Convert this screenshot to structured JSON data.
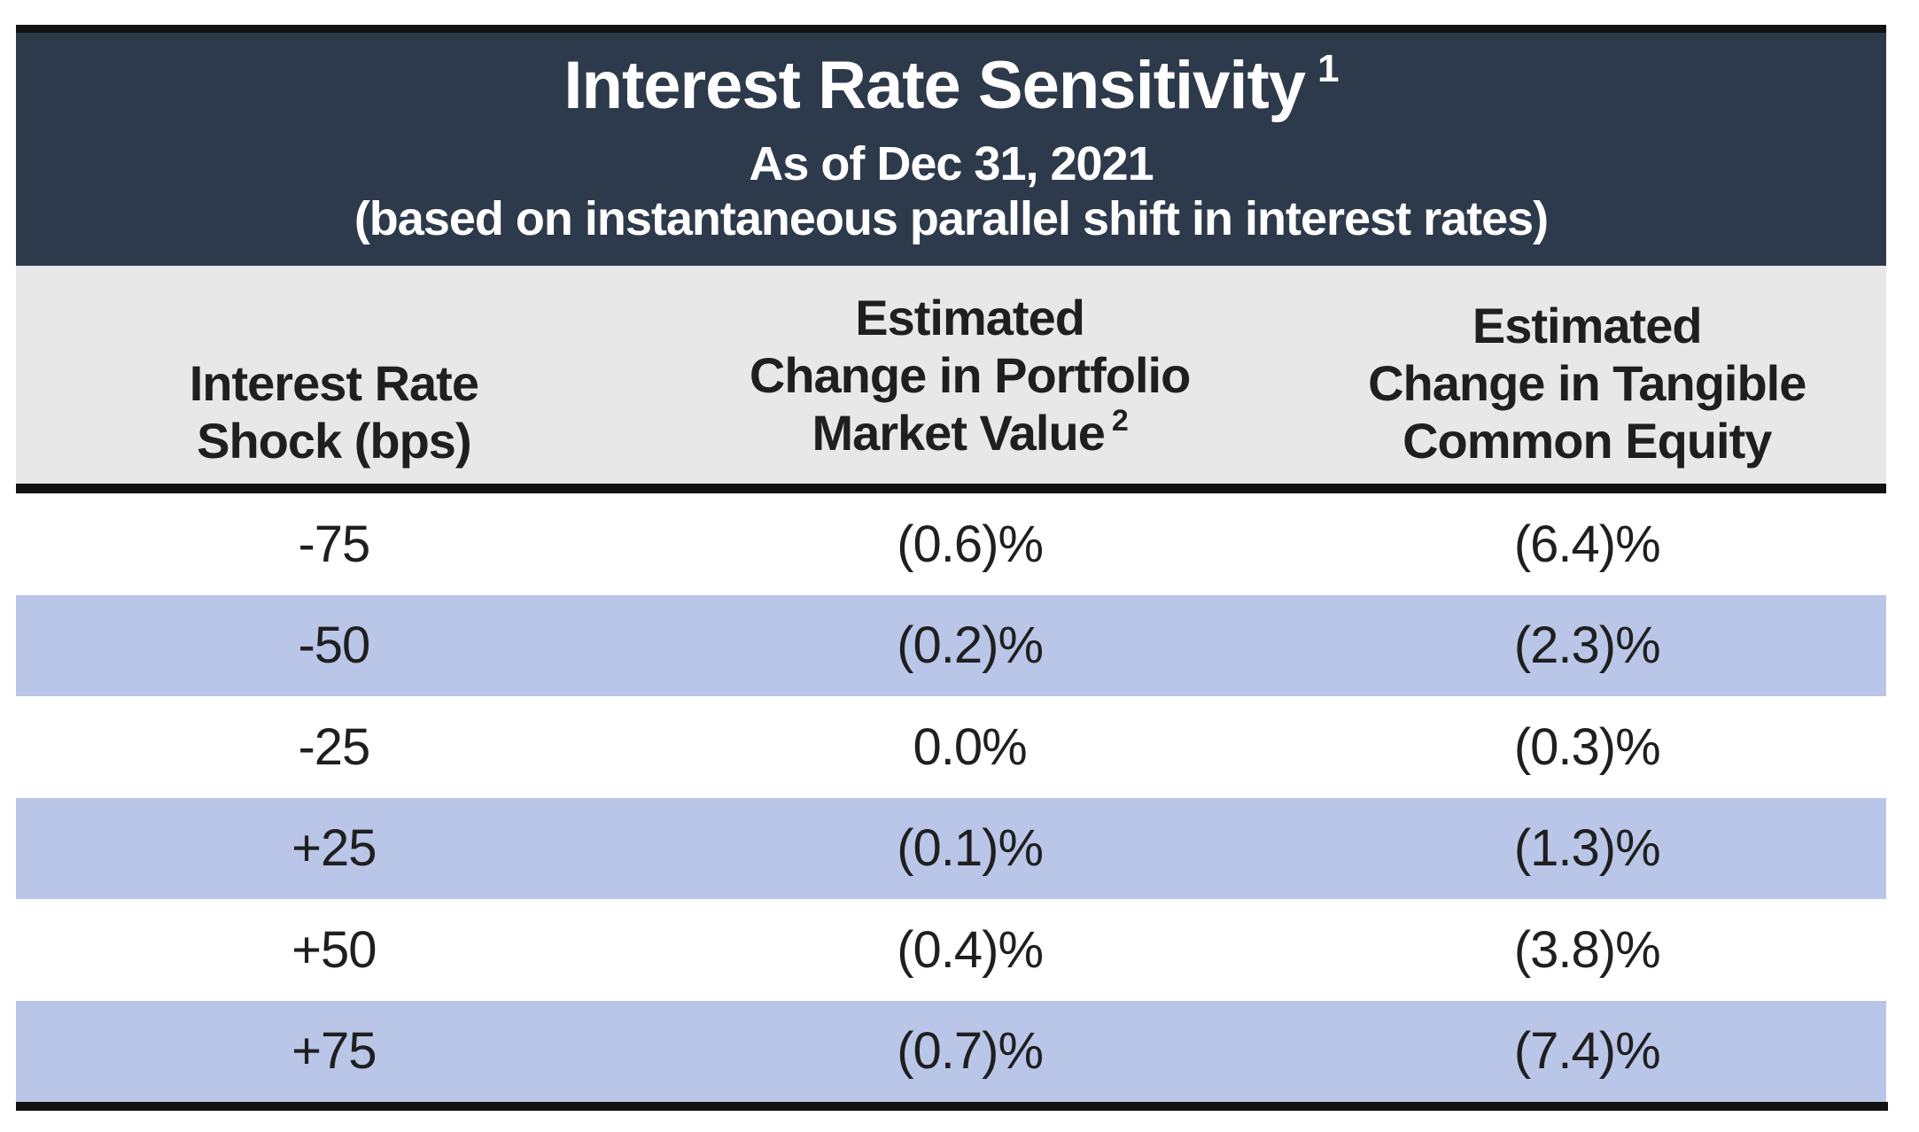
{
  "colors": {
    "header_band_bg": "#2d3a4b",
    "column_header_bg": "#e8e8e8",
    "alt_row_bg": "#b9c6e8",
    "rule_black": "#121212",
    "text_ink": "#1f1f1f",
    "title_text": "#ffffff"
  },
  "table": {
    "title": "Interest Rate Sensitivity",
    "title_footnote": "1",
    "subtitle": "As of Dec 31, 2021",
    "note": "(based on instantaneous parallel shift in interest rates)",
    "columns": [
      {
        "label": "Interest Rate\nShock (bps)"
      },
      {
        "label": "Estimated\nChange in Portfolio\nMarket Value",
        "footnote": "2"
      },
      {
        "label": "Estimated\nChange in Tangible\nCommon Equity"
      }
    ],
    "rows": [
      {
        "shock": "-75",
        "portfolio": "(0.6)%",
        "tce": "(6.4)%"
      },
      {
        "shock": "-50",
        "portfolio": "(0.2)%",
        "tce": "(2.3)%"
      },
      {
        "shock": "-25",
        "portfolio": "0.0%",
        "tce": "(0.3)%"
      },
      {
        "shock": "+25",
        "portfolio": "(0.1)%",
        "tce": "(1.3)%"
      },
      {
        "shock": "+50",
        "portfolio": "(0.4)%",
        "tce": "(3.8)%"
      },
      {
        "shock": "+75",
        "portfolio": "(0.7)%",
        "tce": "(7.4)%"
      }
    ]
  }
}
